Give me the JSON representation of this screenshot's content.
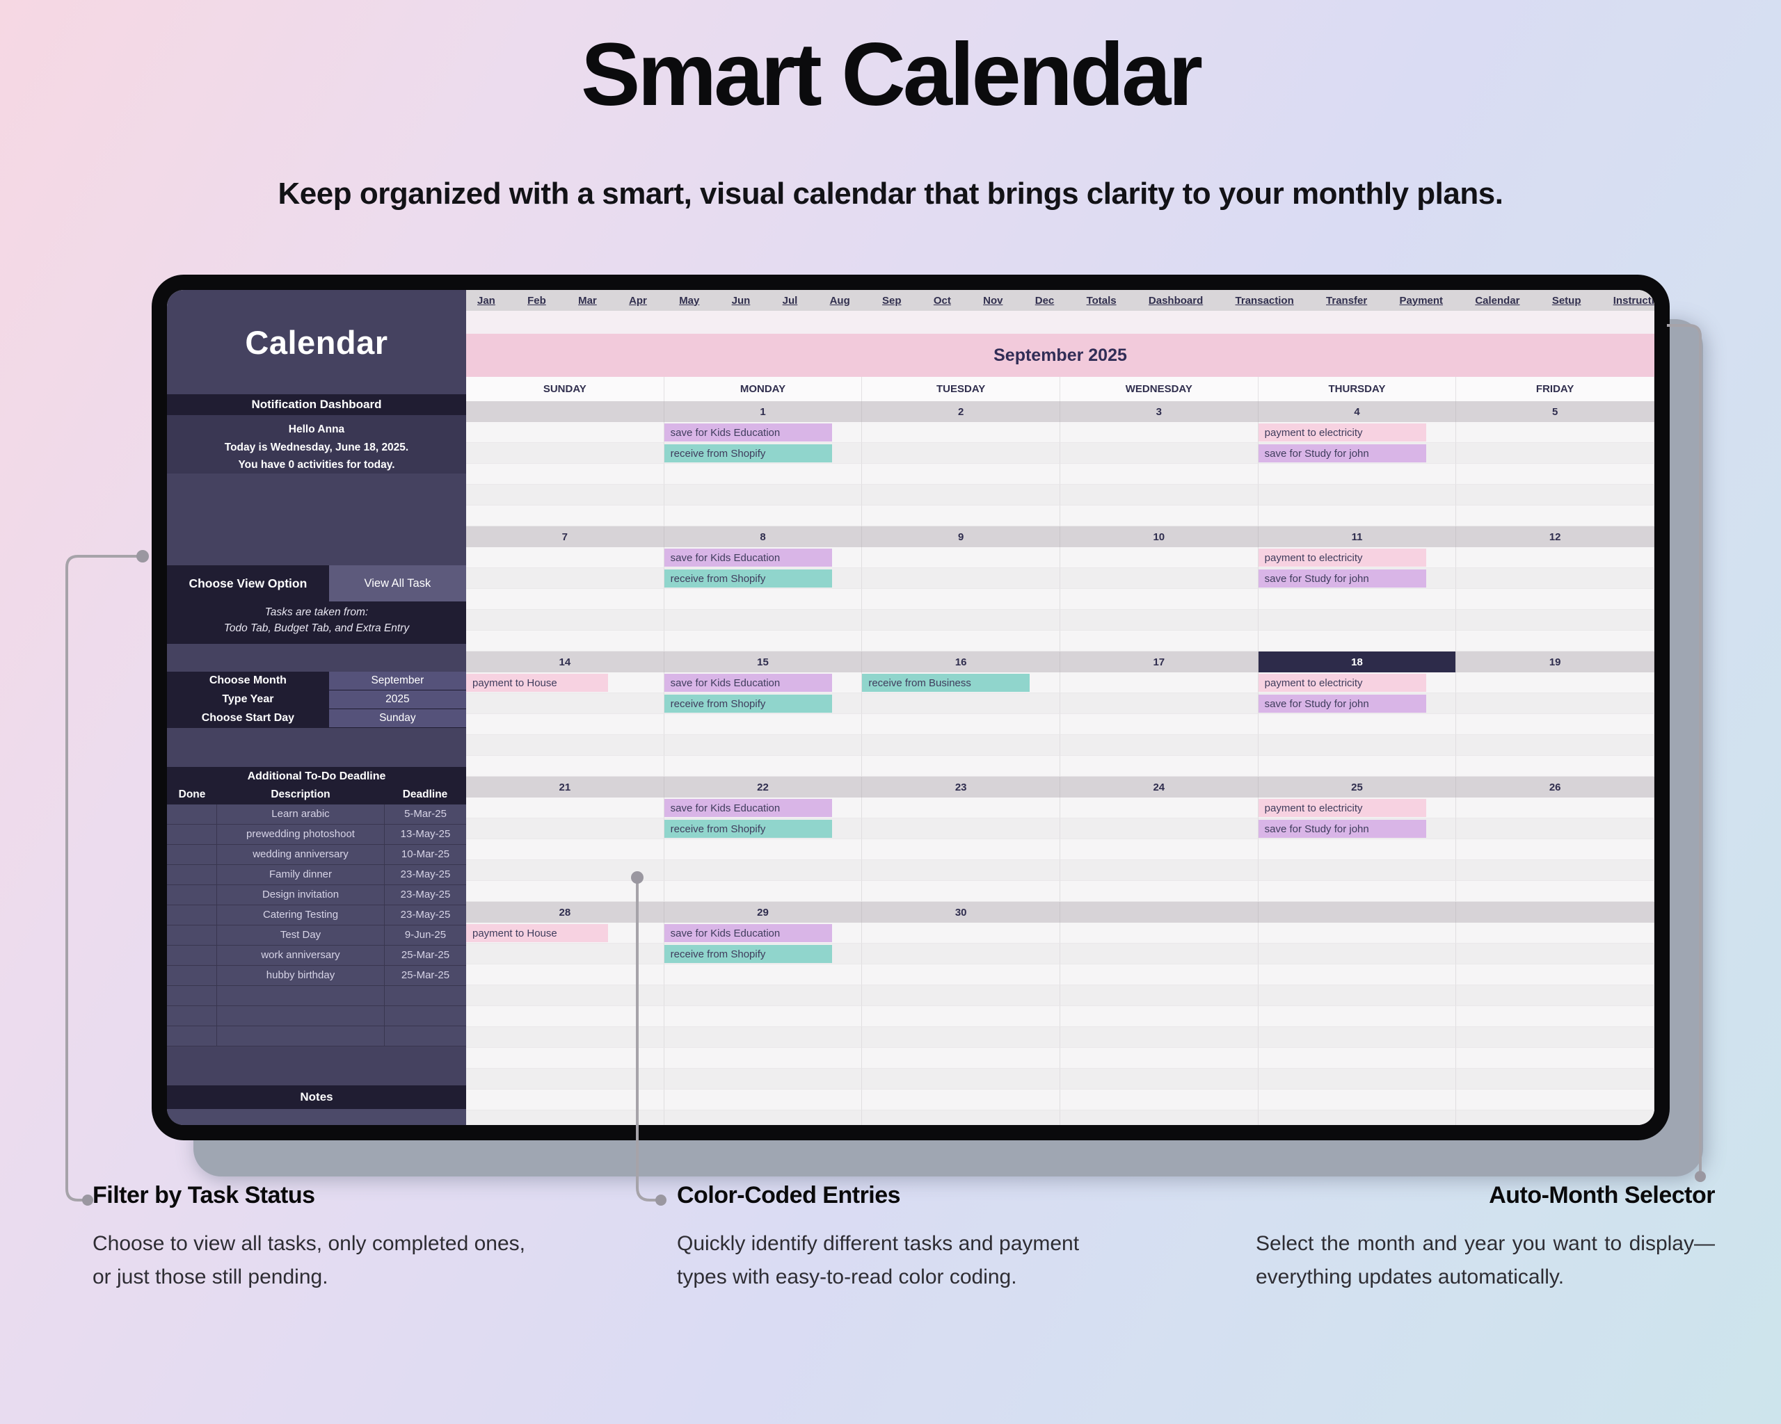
{
  "page": {
    "title": "Smart Calendar",
    "subtitle": "Keep organized with a smart, visual calendar that brings clarity to your monthly plans."
  },
  "tabs": [
    "Jan",
    "Feb",
    "Mar",
    "Apr",
    "May",
    "Jun",
    "Jul",
    "Aug",
    "Sep",
    "Oct",
    "Nov",
    "Dec",
    "Totals",
    "Dashboard",
    "Transaction",
    "Transfer",
    "Payment",
    "Calendar",
    "Setup",
    "Instructions"
  ],
  "sidebar": {
    "title": "Calendar",
    "notification_header": "Notification Dashboard",
    "greeting_lines": [
      "Hello Anna",
      "Today is Wednesday, June 18, 2025.",
      "You have 0 activities for today."
    ],
    "view_option_label": "Choose View Option",
    "view_option_value": "View All Task",
    "tasks_note_lines": [
      "Tasks are taken from:",
      "Todo Tab, Budget Tab, and Extra Entry"
    ],
    "selectors": [
      {
        "label": "Choose Month",
        "value": "September"
      },
      {
        "label": "Type Year",
        "value": "2025"
      },
      {
        "label": "Choose Start Day",
        "value": "Sunday"
      }
    ],
    "todo": {
      "header": "Additional To-Do Deadline",
      "columns": [
        "Done",
        "Description",
        "Deadline"
      ],
      "rows": [
        {
          "done": "",
          "description": "Learn arabic",
          "deadline": "5-Mar-25"
        },
        {
          "done": "",
          "description": "prewedding photoshoot",
          "deadline": "13-May-25"
        },
        {
          "done": "",
          "description": "wedding anniversary",
          "deadline": "10-Mar-25"
        },
        {
          "done": "",
          "description": "Family dinner",
          "deadline": "23-May-25"
        },
        {
          "done": "",
          "description": "Design invitation",
          "deadline": "23-May-25"
        },
        {
          "done": "",
          "description": "Catering Testing",
          "deadline": "23-May-25"
        },
        {
          "done": "",
          "description": "Test Day",
          "deadline": "9-Jun-25"
        },
        {
          "done": "",
          "description": "work anniversary",
          "deadline": "25-Mar-25"
        },
        {
          "done": "",
          "description": "hubby birthday",
          "deadline": "25-Mar-25"
        }
      ],
      "empty_rows": 3
    },
    "notes_header": "Notes"
  },
  "calendar": {
    "month_title": "September 2025",
    "day_headers": [
      "SUNDAY",
      "MONDAY",
      "TUESDAY",
      "WEDNESDAY",
      "THURSDAY",
      "FRIDAY"
    ],
    "highlight_day": "18",
    "entry_colors": {
      "purple": "#d9b5e7",
      "teal": "#90d5cc",
      "pink": "#f7d2e1"
    },
    "weeks": [
      {
        "days": [
          "",
          "1",
          "2",
          "3",
          "4",
          "5"
        ],
        "entry_rows": [
          [
            null,
            {
              "text": "save for Kids Education",
              "color": "purple"
            },
            null,
            null,
            {
              "text": "payment to electricity",
              "color": "pink"
            },
            null
          ],
          [
            null,
            {
              "text": "receive from Shopify",
              "color": "teal"
            },
            null,
            null,
            {
              "text": "save for Study for john",
              "color": "purple"
            },
            null
          ]
        ],
        "empty_rows": 3
      },
      {
        "days": [
          "7",
          "8",
          "9",
          "10",
          "11",
          "12"
        ],
        "entry_rows": [
          [
            null,
            {
              "text": "save for Kids Education",
              "color": "purple"
            },
            null,
            null,
            {
              "text": "payment to electricity",
              "color": "pink"
            },
            null
          ],
          [
            null,
            {
              "text": "receive from Shopify",
              "color": "teal"
            },
            null,
            null,
            {
              "text": "save for Study for john",
              "color": "purple"
            },
            null
          ]
        ],
        "empty_rows": 3
      },
      {
        "days": [
          "14",
          "15",
          "16",
          "17",
          "18",
          "19"
        ],
        "entry_rows": [
          [
            {
              "text": "payment to House",
              "color": "pink"
            },
            {
              "text": "save for Kids Education",
              "color": "purple"
            },
            {
              "text": "receive from Business",
              "color": "teal"
            },
            null,
            {
              "text": "payment to electricity",
              "color": "pink"
            },
            null
          ],
          [
            null,
            {
              "text": "receive from Shopify",
              "color": "teal"
            },
            null,
            null,
            {
              "text": "save for Study for john",
              "color": "purple"
            },
            null
          ]
        ],
        "empty_rows": 3
      },
      {
        "days": [
          "21",
          "22",
          "23",
          "24",
          "25",
          "26"
        ],
        "entry_rows": [
          [
            null,
            {
              "text": "save for Kids Education",
              "color": "purple"
            },
            null,
            null,
            {
              "text": "payment to electricity",
              "color": "pink"
            },
            null
          ],
          [
            null,
            {
              "text": "receive from Shopify",
              "color": "teal"
            },
            null,
            null,
            {
              "text": "save for Study for john",
              "color": "purple"
            },
            null
          ]
        ],
        "empty_rows": 3
      },
      {
        "days": [
          "28",
          "29",
          "30",
          "",
          "",
          ""
        ],
        "entry_rows": [
          [
            {
              "text": "payment to House",
              "color": "pink"
            },
            {
              "text": "save for Kids Education",
              "color": "purple"
            },
            null,
            null,
            null,
            null
          ],
          [
            null,
            {
              "text": "receive from Shopify",
              "color": "teal"
            },
            null,
            null,
            null,
            null
          ]
        ],
        "empty_rows": 8
      }
    ]
  },
  "annotations": [
    {
      "heading": "Filter by Task Status",
      "body": "Choose to view all tasks, only completed ones, or just those still pending."
    },
    {
      "heading": "Color-Coded Entries",
      "body": "Quickly identify different tasks and payment types with easy-to-read color coding."
    },
    {
      "heading": "Auto-Month Selector",
      "body": "Select the month and year you want to display—everything updates automatically."
    }
  ]
}
